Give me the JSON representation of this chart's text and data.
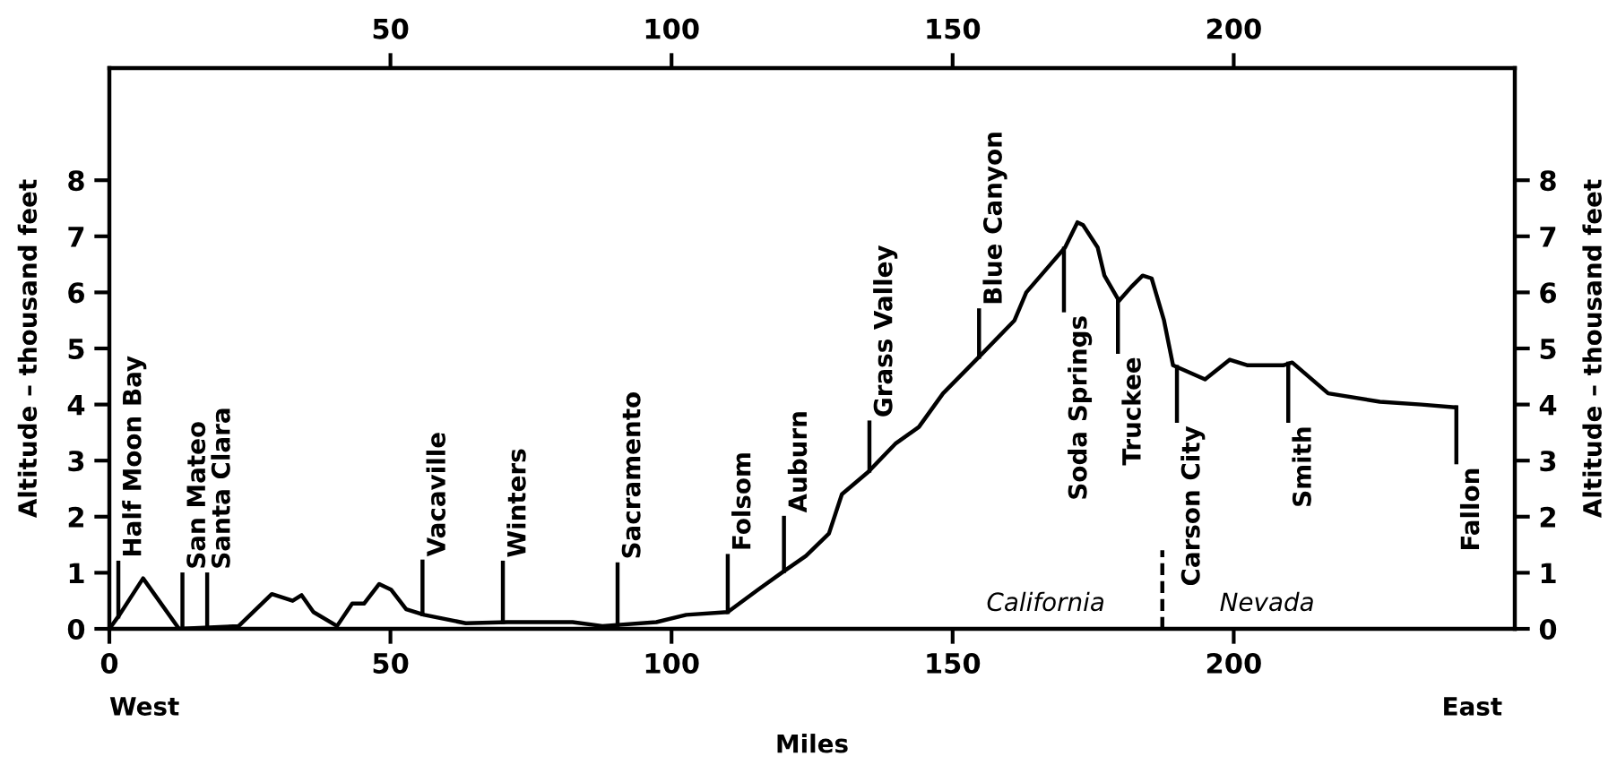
{
  "chart_data": {
    "type": "line",
    "xlabel": "Miles",
    "ylabel": "Altitude – thousand feet",
    "y2label": "Altitude – thousand feet",
    "xlim": [
      0,
      250
    ],
    "xticks": [
      0,
      50,
      100,
      150,
      200
    ],
    "x2lim": [
      0,
      250
    ],
    "x2ticks": [
      50,
      100,
      150,
      200
    ],
    "ylim": [
      0,
      10
    ],
    "yticks": [
      0,
      1,
      2,
      3,
      4,
      5,
      6,
      7,
      8
    ],
    "y2lim": [
      0,
      10
    ],
    "y2ticks": [
      0,
      1,
      2,
      3,
      4,
      5,
      6,
      7,
      8
    ],
    "grid": false,
    "marker": "none",
    "series": [
      {
        "color": "#000000",
        "line_style": "solid",
        "x": [
          0,
          1.8,
          6.0,
          12.4,
          23,
          28.9,
          32.6,
          34.2,
          36.3,
          40.5,
          43.2,
          45.3,
          48,
          50.1,
          52.8,
          56,
          63.4,
          70.8,
          82.4,
          87.7,
          97.3,
          102.6,
          110,
          115.4,
          119.6,
          123.9,
          128,
          130.3,
          135,
          139.8,
          144,
          148.3,
          154.7,
          161,
          163.1,
          167.4,
          170,
          172.2,
          173.2,
          175.8,
          177,
          179.6,
          181.8,
          183.8,
          185.4,
          187.6,
          189.2,
          194.9,
          199.3,
          202.5,
          208.8,
          210.4,
          216.8,
          226,
          233.4,
          239.5
        ],
        "values": [
          0,
          0.25,
          0.9,
          0,
          0.05,
          0.62,
          0.5,
          0.6,
          0.3,
          0.05,
          0.45,
          0.45,
          0.8,
          0.7,
          0.35,
          0.25,
          0.1,
          0.12,
          0.12,
          0.05,
          0.12,
          0.25,
          0.3,
          0.7,
          1.0,
          1.3,
          1.7,
          2.4,
          2.8,
          3.3,
          3.6,
          4.2,
          4.85,
          5.5,
          6.0,
          6.5,
          6.8,
          7.25,
          7.2,
          6.8,
          6.3,
          5.85,
          6.1,
          6.3,
          6.25,
          5.5,
          4.7,
          4.45,
          4.8,
          4.7,
          4.7,
          4.75,
          4.2,
          4.05,
          4.0,
          3.95
        ]
      },
      {
        "color": "#000000",
        "line_style": "dashed",
        "x": [
          187.3,
          187.3
        ],
        "values": [
          0,
          1.4
        ]
      },
      {
        "color": "#000000",
        "line_style": "solid",
        "x": [
          1.6,
          1.6
        ],
        "values": [
          0.22,
          1.18
        ]
      },
      {
        "color": "#000000",
        "line_style": "solid",
        "x": [
          13.0,
          13.0
        ],
        "values": [
          0,
          0.97
        ]
      },
      {
        "color": "#000000",
        "line_style": "solid",
        "x": [
          17.4,
          17.4
        ],
        "values": [
          0.02,
          0.97
        ]
      },
      {
        "color": "#000000",
        "line_style": "solid",
        "x": [
          55.7,
          55.7
        ],
        "values": [
          0.26,
          1.2
        ]
      },
      {
        "color": "#000000",
        "line_style": "solid",
        "x": [
          70,
          70
        ],
        "values": [
          0.12,
          1.18
        ]
      },
      {
        "color": "#000000",
        "line_style": "solid",
        "x": [
          90.4,
          90.4
        ],
        "values": [
          0.07,
          1.15
        ]
      },
      {
        "color": "#000000",
        "line_style": "solid",
        "x": [
          110,
          110
        ],
        "values": [
          0.3,
          1.3
        ]
      },
      {
        "color": "#000000",
        "line_style": "solid",
        "x": [
          120,
          120
        ],
        "values": [
          1.03,
          1.98
        ]
      },
      {
        "color": "#000000",
        "line_style": "solid",
        "x": [
          135.2,
          135.2
        ],
        "values": [
          2.82,
          3.68
        ]
      },
      {
        "color": "#000000",
        "line_style": "solid",
        "x": [
          154.7,
          154.7
        ],
        "values": [
          4.85,
          5.68
        ]
      },
      {
        "color": "#000000",
        "line_style": "solid",
        "x": [
          169.8,
          169.8
        ],
        "values": [
          6.78,
          5.68
        ]
      },
      {
        "color": "#000000",
        "line_style": "solid",
        "x": [
          179.4,
          179.4
        ],
        "values": [
          5.88,
          4.94
        ]
      },
      {
        "color": "#000000",
        "line_style": "solid",
        "x": [
          189.9,
          189.9
        ],
        "values": [
          4.67,
          3.71
        ]
      },
      {
        "color": "#000000",
        "line_style": "solid",
        "x": [
          209.7,
          209.7
        ],
        "values": [
          4.73,
          3.71
        ]
      },
      {
        "color": "#000000",
        "line_style": "solid",
        "x": [
          239.6,
          239.6
        ],
        "values": [
          3.95,
          2.97
        ]
      }
    ],
    "annotations": [
      {
        "text": "Half Moon Bay",
        "x": 1.6,
        "y": 1.18
      },
      {
        "text": "San Mateo",
        "x": 13.0,
        "y": 0.97
      },
      {
        "text": "Santa Clara",
        "x": 17.4,
        "y": 0.97
      },
      {
        "text": "Vacaville",
        "x": 55.7,
        "y": 1.2
      },
      {
        "text": "Winters",
        "x": 70,
        "y": 1.18
      },
      {
        "text": "Sacramento",
        "x": 90.4,
        "y": 1.15
      },
      {
        "text": "Folsom",
        "x": 110,
        "y": 1.3
      },
      {
        "text": "Auburn",
        "x": 120,
        "y": 1.98
      },
      {
        "text": "Grass Valley",
        "x": 135.2,
        "y": 3.68
      },
      {
        "text": "Blue Canyon",
        "x": 154.7,
        "y": 5.68
      },
      {
        "text": "Soda Springs",
        "x": 169.8,
        "y": 5.68
      },
      {
        "text": "Truckee",
        "x": 179.4,
        "y": 4.94
      },
      {
        "text": "Carson City",
        "x": 189.9,
        "y": 3.71
      },
      {
        "text": "Smith",
        "x": 209.7,
        "y": 3.71
      },
      {
        "text": "Fallon",
        "x": 239.6,
        "y": 2.97
      },
      "California",
      "Nevada",
      "West",
      "East"
    ]
  }
}
